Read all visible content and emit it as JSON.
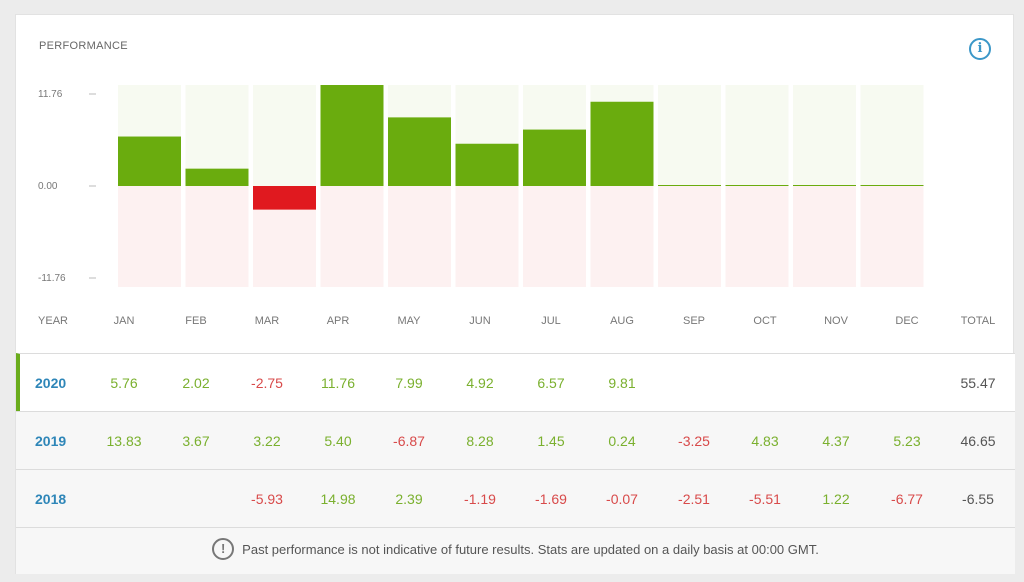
{
  "card": {
    "title": "PERFORMANCE",
    "info_icon": "i"
  },
  "chart_data": {
    "type": "bar",
    "categories": [
      "JAN",
      "FEB",
      "MAR",
      "APR",
      "MAY",
      "JUN",
      "JUL",
      "AUG",
      "SEP",
      "OCT",
      "NOV",
      "DEC"
    ],
    "values": [
      5.76,
      2.02,
      -2.75,
      11.76,
      7.99,
      4.92,
      6.57,
      9.81,
      0,
      0,
      0,
      0
    ],
    "ylim": [
      -11.76,
      11.76
    ],
    "yticks": [
      "11.76",
      "0.00",
      "-11.76"
    ],
    "colors": {
      "positive": "#6aac0e",
      "negative": "#e0191f",
      "pos_bg": "#f7faf1",
      "neg_bg": "#fdf1f1"
    }
  },
  "table": {
    "headers": [
      "YEAR",
      "JAN",
      "FEB",
      "MAR",
      "APR",
      "MAY",
      "JUN",
      "JUL",
      "AUG",
      "SEP",
      "OCT",
      "NOV",
      "DEC",
      "TOTAL"
    ],
    "rows": [
      {
        "year": "2020",
        "values": [
          "5.76",
          "2.02",
          "-2.75",
          "11.76",
          "7.99",
          "4.92",
          "6.57",
          "9.81",
          "",
          "",
          "",
          ""
        ],
        "total": "55.47"
      },
      {
        "year": "2019",
        "values": [
          "13.83",
          "3.67",
          "3.22",
          "5.40",
          "-6.87",
          "8.28",
          "1.45",
          "0.24",
          "-3.25",
          "4.83",
          "4.37",
          "5.23"
        ],
        "total": "46.65"
      },
      {
        "year": "2018",
        "values": [
          "",
          "",
          "-5.93",
          "14.98",
          "2.39",
          "-1.19",
          "-1.69",
          "-0.07",
          "-2.51",
          "-5.51",
          "1.22",
          "-6.77"
        ],
        "total": "-6.55"
      }
    ]
  },
  "footer": {
    "icon": "!",
    "text": "Past performance is not indicative of future results. Stats are updated on a daily basis at 00:00 GMT."
  }
}
